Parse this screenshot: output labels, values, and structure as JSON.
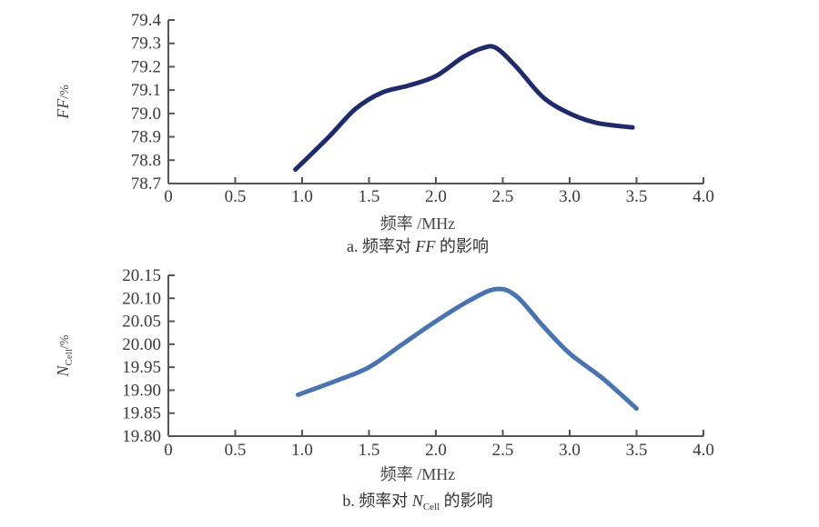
{
  "chart_data": [
    {
      "type": "line",
      "caption_prefix": "a. 频率对 ",
      "caption_var": "FF",
      "caption_sub": "",
      "caption_suffix": " 的影响",
      "xlabel": "频率 /MHz",
      "ylabel_var": "FF",
      "ylabel_sub": "",
      "ylabel_unit": "/%",
      "xlim": [
        0,
        4.0
      ],
      "ylim": [
        78.7,
        79.4
      ],
      "xticks": [
        "0",
        "0.5",
        "1.0",
        "1.5",
        "2.0",
        "2.5",
        "3.0",
        "3.5",
        "4.0"
      ],
      "yticks": [
        "78.7",
        "78.8",
        "78.9",
        "79.0",
        "79.1",
        "79.2",
        "79.3",
        "79.4"
      ],
      "grid": false,
      "color": "#1f2a6b",
      "x": [
        0.95,
        1.2,
        1.4,
        1.6,
        1.8,
        2.0,
        2.2,
        2.35,
        2.45,
        2.6,
        2.8,
        3.0,
        3.2,
        3.47
      ],
      "y": [
        78.76,
        78.9,
        79.02,
        79.09,
        79.12,
        79.16,
        79.24,
        79.28,
        79.28,
        79.2,
        79.07,
        79.0,
        78.96,
        78.94
      ]
    },
    {
      "type": "line",
      "caption_prefix": "b. 频率对 ",
      "caption_var": "N",
      "caption_sub": "Cell",
      "caption_suffix": " 的影响",
      "xlabel": "频率 /MHz",
      "ylabel_var": "N",
      "ylabel_sub": "Cell",
      "ylabel_unit": "/%",
      "xlim": [
        0,
        4.0
      ],
      "ylim": [
        19.8,
        20.15
      ],
      "xticks": [
        "0",
        "0.5",
        "1.0",
        "1.5",
        "2.0",
        "2.5",
        "3.0",
        "3.5",
        "4.0"
      ],
      "yticks": [
        "19.80",
        "19.85",
        "19.90",
        "19.95",
        "20.00",
        "20.05",
        "20.10",
        "20.15"
      ],
      "grid": false,
      "color": "#4a74b0",
      "x": [
        0.97,
        1.25,
        1.5,
        1.75,
        2.0,
        2.25,
        2.45,
        2.6,
        2.8,
        3.0,
        3.25,
        3.5
      ],
      "y": [
        19.89,
        19.92,
        19.95,
        20.0,
        20.05,
        20.095,
        20.12,
        20.105,
        20.04,
        19.98,
        19.925,
        19.86
      ]
    }
  ]
}
